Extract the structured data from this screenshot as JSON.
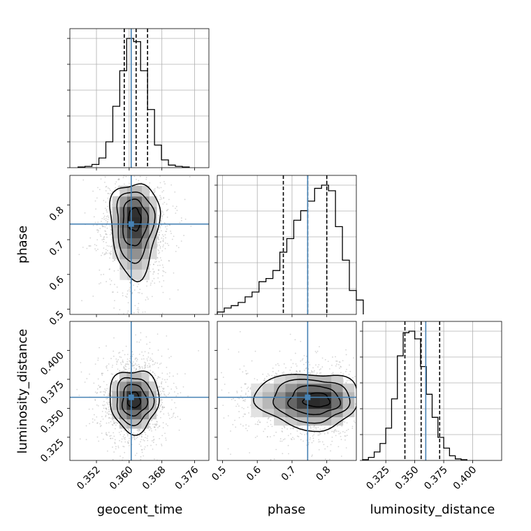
{
  "chart_data": {
    "type": "corner",
    "truth_color": "#4682b4",
    "hist_color": "#000000",
    "grid": true,
    "parameters": [
      {
        "name": "geocent_time",
        "range": [
          0.3455,
          0.3795
        ],
        "ticks": [
          0.352,
          0.36,
          0.368,
          0.376
        ],
        "tick_labels": [
          "0.352",
          "0.360",
          "0.368",
          "0.376"
        ],
        "truth": 0.3605,
        "quantiles": [
          0.3588,
          0.3617,
          0.3645
        ]
      },
      {
        "name": "phase",
        "range": [
          0.485,
          0.885
        ],
        "ticks": [
          0.5,
          0.6,
          0.7,
          0.8
        ],
        "tick_labels": [
          "0.5",
          "0.6",
          "0.7",
          "0.8"
        ],
        "truth": 0.745,
        "quantiles": [
          0.675,
          0.745,
          0.8
        ]
      },
      {
        "name": "luminosity_distance",
        "range": [
          0.305,
          0.425
        ],
        "ticks": [
          0.325,
          0.35,
          0.375,
          0.4
        ],
        "tick_labels": [
          "0.325",
          "0.350",
          "0.375",
          "0.400"
        ],
        "truth": 0.3595,
        "quantiles": [
          0.3415,
          0.3555,
          0.3715
        ]
      }
    ],
    "histograms": [
      {
        "param": "geocent_time",
        "bin_start": 0.3475,
        "bin_width": 0.0017,
        "counts": [
          1,
          2,
          5,
          15,
          40,
          95,
          150,
          200,
          195,
          150,
          90,
          35,
          12,
          4,
          2,
          1
        ]
      },
      {
        "param": "phase",
        "bin_start": 0.485,
        "bin_width": 0.02,
        "counts": [
          3,
          8,
          11,
          15,
          22,
          28,
          41,
          45,
          55,
          78,
          95,
          118,
          130,
          142,
          158,
          162,
          155,
          110,
          68,
          30,
          18
        ]
      },
      {
        "param": "luminosity_distance",
        "bin_start": 0.305,
        "bin_width": 0.005,
        "counts": [
          1,
          4,
          11,
          22,
          42,
          80,
          136,
          166,
          168,
          158,
          122,
          86,
          56,
          30,
          16,
          6,
          2,
          1
        ]
      }
    ],
    "joint": [
      {
        "x": "geocent_time",
        "y": "phase",
        "center": [
          0.3613,
          0.765
        ],
        "spread": [
          0.003,
          0.05
        ],
        "tail": "y-lower"
      },
      {
        "x": "geocent_time",
        "y": "luminosity_distance",
        "center": [
          0.3612,
          0.357
        ],
        "spread": [
          0.003,
          0.0135
        ],
        "tail": "none"
      },
      {
        "x": "phase",
        "y": "luminosity_distance",
        "center": [
          0.78,
          0.357
        ],
        "spread": [
          0.055,
          0.012
        ],
        "tail": "x-lower"
      }
    ],
    "contour_levels": [
      0.5,
      1.0,
      1.5,
      2.0
    ],
    "xlabels": [
      "geocent_time",
      "phase",
      "luminosity_distance"
    ],
    "ylabels": [
      "phase",
      "luminosity_distance"
    ]
  }
}
